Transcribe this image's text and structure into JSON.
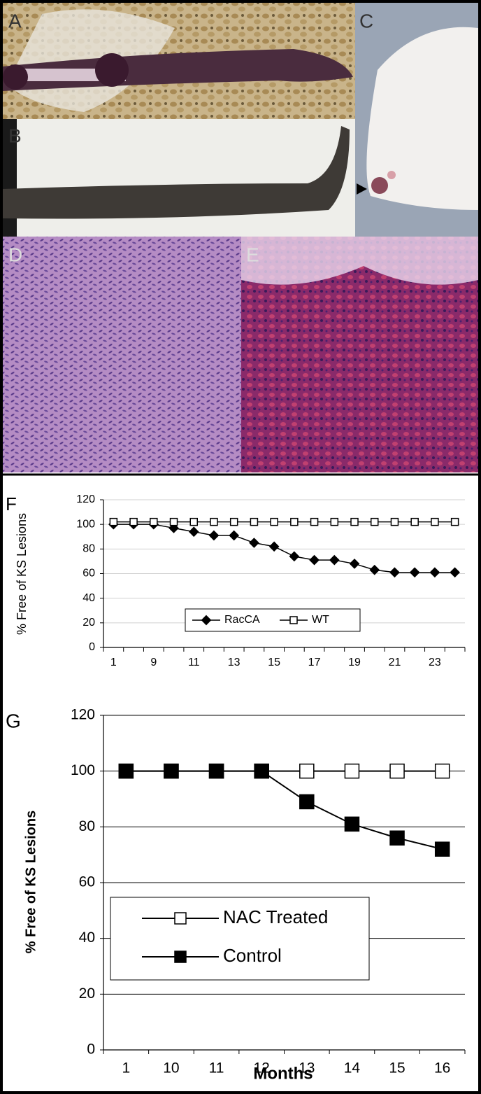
{
  "panel_labels": [
    "A",
    "B",
    "C",
    "D",
    "E"
  ],
  "chart_data": [
    {
      "type": "line",
      "panel_label": "F",
      "ylabel": "% Free of KS Lesions",
      "categories": [
        1,
        null,
        9,
        null,
        11,
        null,
        13,
        null,
        15,
        null,
        17,
        null,
        19,
        null,
        21,
        null,
        23,
        null
      ],
      "series": [
        {
          "name": "RacCA",
          "color": "#000000",
          "marker": "diamond",
          "filled": true,
          "values": [
            100,
            100,
            100,
            97,
            94,
            91,
            91,
            85,
            82,
            74,
            71,
            71,
            68,
            63,
            61,
            61,
            61,
            61
          ]
        },
        {
          "name": "WT",
          "color": "#000000",
          "marker": "square",
          "filled": false,
          "values": [
            102,
            102,
            102,
            102,
            102,
            102,
            102,
            102,
            102,
            102,
            102,
            102,
            102,
            102,
            102,
            102,
            102,
            102
          ]
        }
      ],
      "ylim": [
        0,
        120
      ],
      "yticks": [
        0,
        20,
        40,
        60,
        80,
        100,
        120
      ],
      "grid": true,
      "grid_color": "#d0d0d0",
      "legend": "bottom"
    },
    {
      "type": "line",
      "panel_label": "G",
      "ylabel": "% Free of KS Lesions",
      "xlabel": "Months",
      "categories": [
        1,
        10,
        11,
        12,
        13,
        14,
        15,
        16
      ],
      "series": [
        {
          "name": "NAC Treated",
          "color": "#000000",
          "marker": "square",
          "filled": false,
          "values": [
            100,
            100,
            100,
            100,
            100,
            100,
            100,
            100
          ]
        },
        {
          "name": "Control",
          "color": "#000000",
          "marker": "square",
          "filled": true,
          "values": [
            100,
            100,
            100,
            100,
            89,
            81,
            76,
            72
          ]
        }
      ],
      "ylim": [
        0,
        120
      ],
      "yticks": [
        0,
        20,
        40,
        60,
        80,
        100,
        120
      ],
      "grid": true,
      "grid_color": "#000000",
      "legend": "left"
    }
  ]
}
